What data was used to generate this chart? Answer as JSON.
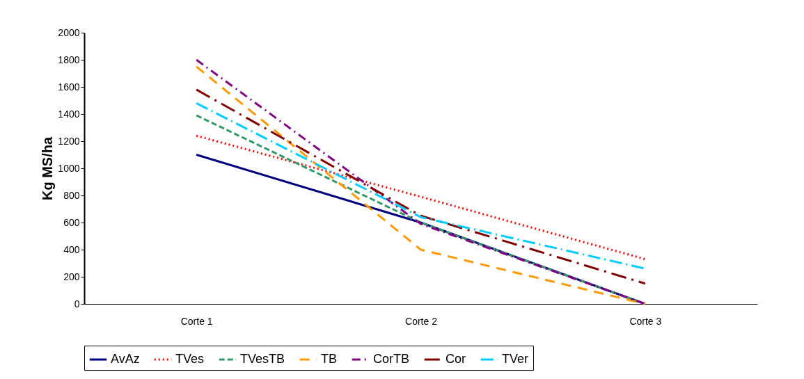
{
  "chart_data": {
    "type": "line",
    "ylabel": "Kg MS/ha",
    "categories": [
      "Corte 1",
      "Corte 2",
      "Corte 3"
    ],
    "ylim": [
      0,
      2000
    ],
    "yticks": [
      0,
      200,
      400,
      600,
      800,
      1000,
      1200,
      1400,
      1600,
      1800,
      2000
    ],
    "legend": "bottom",
    "grid": false,
    "marker": "none",
    "series": [
      {
        "name": "AvAz",
        "color": "#000080",
        "line_style": "solid",
        "values": [
          1100,
          600,
          0
        ]
      },
      {
        "name": "TVes",
        "color": "#ff0000",
        "line_style": "dotted",
        "values": [
          1240,
          790,
          330
        ]
      },
      {
        "name": "TVesTB",
        "color": "#339966",
        "line_style": "dashed",
        "values": [
          1390,
          600,
          0
        ]
      },
      {
        "name": "TB",
        "color": "#ff9900",
        "line_style": "longdash",
        "values": [
          1750,
          400,
          0
        ]
      },
      {
        "name": "CorTB",
        "color": "#800080",
        "line_style": "dashdot",
        "values": [
          1800,
          590,
          0
        ]
      },
      {
        "name": "Cor",
        "color": "#800000",
        "line_style": "longdashdot",
        "values": [
          1580,
          650,
          150
        ]
      },
      {
        "name": "TVer",
        "color": "#00ccff",
        "line_style": "longdashdot2",
        "values": [
          1480,
          640,
          260
        ]
      }
    ]
  }
}
